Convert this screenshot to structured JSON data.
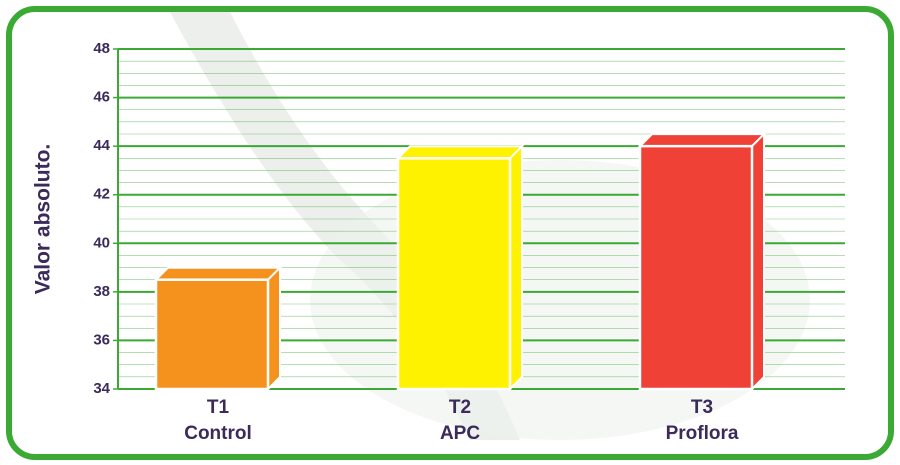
{
  "chart_data": {
    "type": "bar3d",
    "ylabel": "Valor absoluto.",
    "categories": [
      "T1",
      "T2",
      "T3"
    ],
    "category_names": [
      "Control",
      "APC",
      "Proflora"
    ],
    "values": [
      38.5,
      43.5,
      44
    ],
    "colors": [
      "#f5921e",
      "#fff200",
      "#ef4136"
    ],
    "ylim": [
      34,
      48
    ],
    "yticks": [
      34,
      36,
      38,
      40,
      42,
      44,
      46,
      48
    ],
    "grid": true,
    "grid_color": "#3aaa35"
  }
}
